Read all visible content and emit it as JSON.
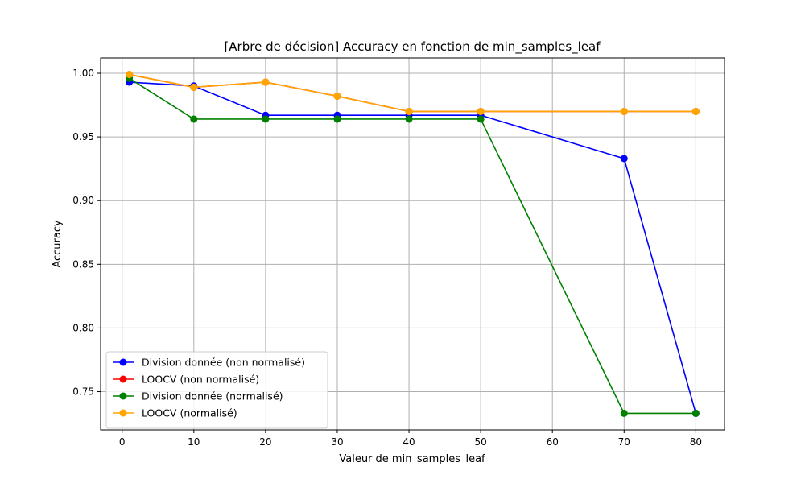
{
  "chart_data": {
    "type": "line",
    "title": "[Arbre de décision] Accuracy en fonction de min_samples_leaf",
    "xlabel": "Valeur de min_samples_leaf",
    "ylabel": "Accuracy",
    "xlim": [
      -3,
      84
    ],
    "ylim": [
      0.72,
      1.012
    ],
    "xticks": [
      0,
      10,
      20,
      30,
      40,
      50,
      60,
      70,
      80
    ],
    "yticks": [
      0.75,
      0.8,
      0.85,
      0.9,
      0.95,
      1.0
    ],
    "xtick_labels": [
      "0",
      "10",
      "20",
      "30",
      "40",
      "50",
      "60",
      "70",
      "80"
    ],
    "ytick_labels": [
      "0.75",
      "0.80",
      "0.85",
      "0.90",
      "0.95",
      "1.00"
    ],
    "grid": true,
    "legend_position": "lower-left",
    "x": [
      1,
      10,
      20,
      30,
      40,
      50,
      70,
      80
    ],
    "series": [
      {
        "name": "Division donnée (non normalisé)",
        "color": "#0000ff",
        "values": [
          0.993,
          0.99,
          0.967,
          0.967,
          0.967,
          0.967,
          0.933,
          0.733
        ]
      },
      {
        "name": "LOOCV (non normalisé)",
        "color": "#ff0000",
        "values": [
          0.999,
          0.989,
          0.993,
          0.982,
          0.97,
          0.97,
          0.97,
          0.97
        ]
      },
      {
        "name": "Division donnée (normalisé)",
        "color": "#008000",
        "values": [
          0.996,
          0.964,
          0.964,
          0.964,
          0.964,
          0.964,
          0.733,
          0.733
        ]
      },
      {
        "name": "LOOCV (normalisé)",
        "color": "#ffa500",
        "values": [
          0.999,
          0.989,
          0.993,
          0.982,
          0.97,
          0.97,
          0.97,
          0.97
        ]
      }
    ]
  }
}
